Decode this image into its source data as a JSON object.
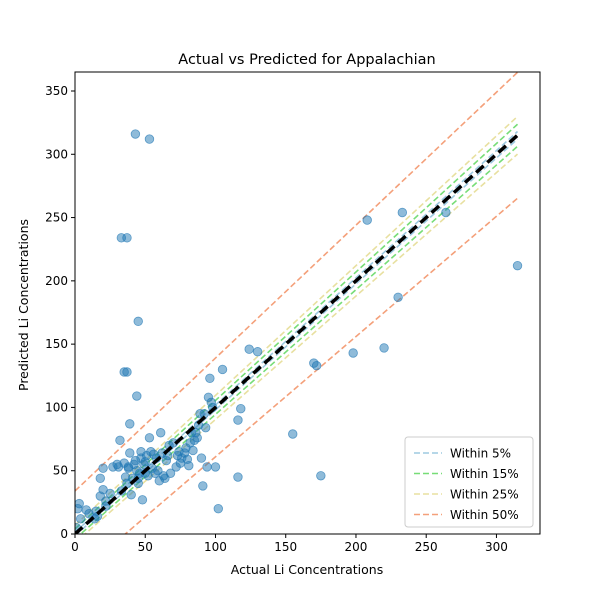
{
  "chart_data": {
    "type": "scatter",
    "title": "Actual vs Predicted for Appalachian",
    "xlabel": "Actual Li Concentrations",
    "ylabel": "Predicted Li Concentrations",
    "xlim": [
      0,
      331
    ],
    "ylim": [
      0,
      365
    ],
    "xticks": [
      0,
      50,
      100,
      150,
      200,
      250,
      300
    ],
    "yticks": [
      0,
      50,
      100,
      150,
      200,
      250,
      300,
      350
    ],
    "grid": false,
    "legend_position": "lower-right",
    "points": {
      "color": "#1f77b4",
      "x": [
        1,
        3,
        4,
        2,
        8,
        10,
        14,
        15,
        16,
        18,
        18,
        20,
        22,
        22,
        25,
        27,
        30,
        32,
        33,
        35,
        36,
        37,
        38,
        39,
        40,
        41,
        42,
        43,
        44,
        45,
        45,
        46,
        47,
        48,
        49,
        50,
        50,
        51,
        52,
        53,
        54,
        55,
        56,
        57,
        58,
        59,
        60,
        61,
        62,
        63,
        64,
        65,
        66,
        67,
        68,
        70,
        72,
        73,
        74,
        75,
        76,
        78,
        79,
        80,
        81,
        82,
        83,
        84,
        85,
        86,
        87,
        88,
        89,
        90,
        91,
        92,
        93,
        94,
        95,
        96,
        97,
        98,
        100,
        102,
        105,
        116,
        116,
        118,
        124,
        130,
        155,
        170,
        172,
        175,
        198,
        208,
        220,
        230,
        233,
        264,
        315,
        43,
        53,
        33,
        37,
        45,
        35,
        37,
        44,
        39,
        31,
        20,
        47,
        38
      ],
      "y": [
        5,
        24,
        12,
        20,
        19,
        16,
        12,
        18,
        14,
        44,
        30,
        35,
        26,
        22,
        32,
        53,
        55,
        74,
        34,
        56,
        45,
        40,
        52,
        87,
        31,
        44,
        55,
        58,
        50,
        40,
        44,
        48,
        60,
        27,
        55,
        48,
        57,
        62,
        46,
        76,
        65,
        52,
        63,
        48,
        60,
        50,
        42,
        80,
        64,
        46,
        44,
        58,
        62,
        70,
        48,
        72,
        53,
        62,
        65,
        56,
        60,
        64,
        68,
        59,
        54,
        72,
        80,
        66,
        74,
        80,
        76,
        86,
        95,
        60,
        38,
        95,
        84,
        53,
        108,
        123,
        104,
        100,
        53,
        20,
        130,
        90,
        45,
        99,
        146,
        144,
        79,
        135,
        133,
        46,
        143,
        248,
        147,
        187,
        254,
        254,
        212,
        316,
        312,
        234,
        234,
        168,
        128,
        128,
        109,
        64,
        53,
        52,
        65,
        53
      ]
    },
    "reference_lines": [
      {
        "name": "Within 5%",
        "pct": 5,
        "color": "#9ecae1"
      },
      {
        "name": "Within 15%",
        "pct": 15,
        "color": "#77dd77"
      },
      {
        "name": "Within 25%",
        "pct": 25,
        "color": "#e8e0a0"
      },
      {
        "name": "Within 50%",
        "pct": 50,
        "color": "#f4a07a"
      }
    ],
    "identity_line": {
      "color": "#000000",
      "x": [
        0,
        315
      ],
      "y": [
        0,
        315
      ]
    },
    "band_offsets": {
      "5": [
        1.4,
        1.4
      ],
      "15": [
        4,
        4
      ],
      "25": [
        7,
        7
      ],
      "50": [
        34,
        34
      ]
    }
  }
}
